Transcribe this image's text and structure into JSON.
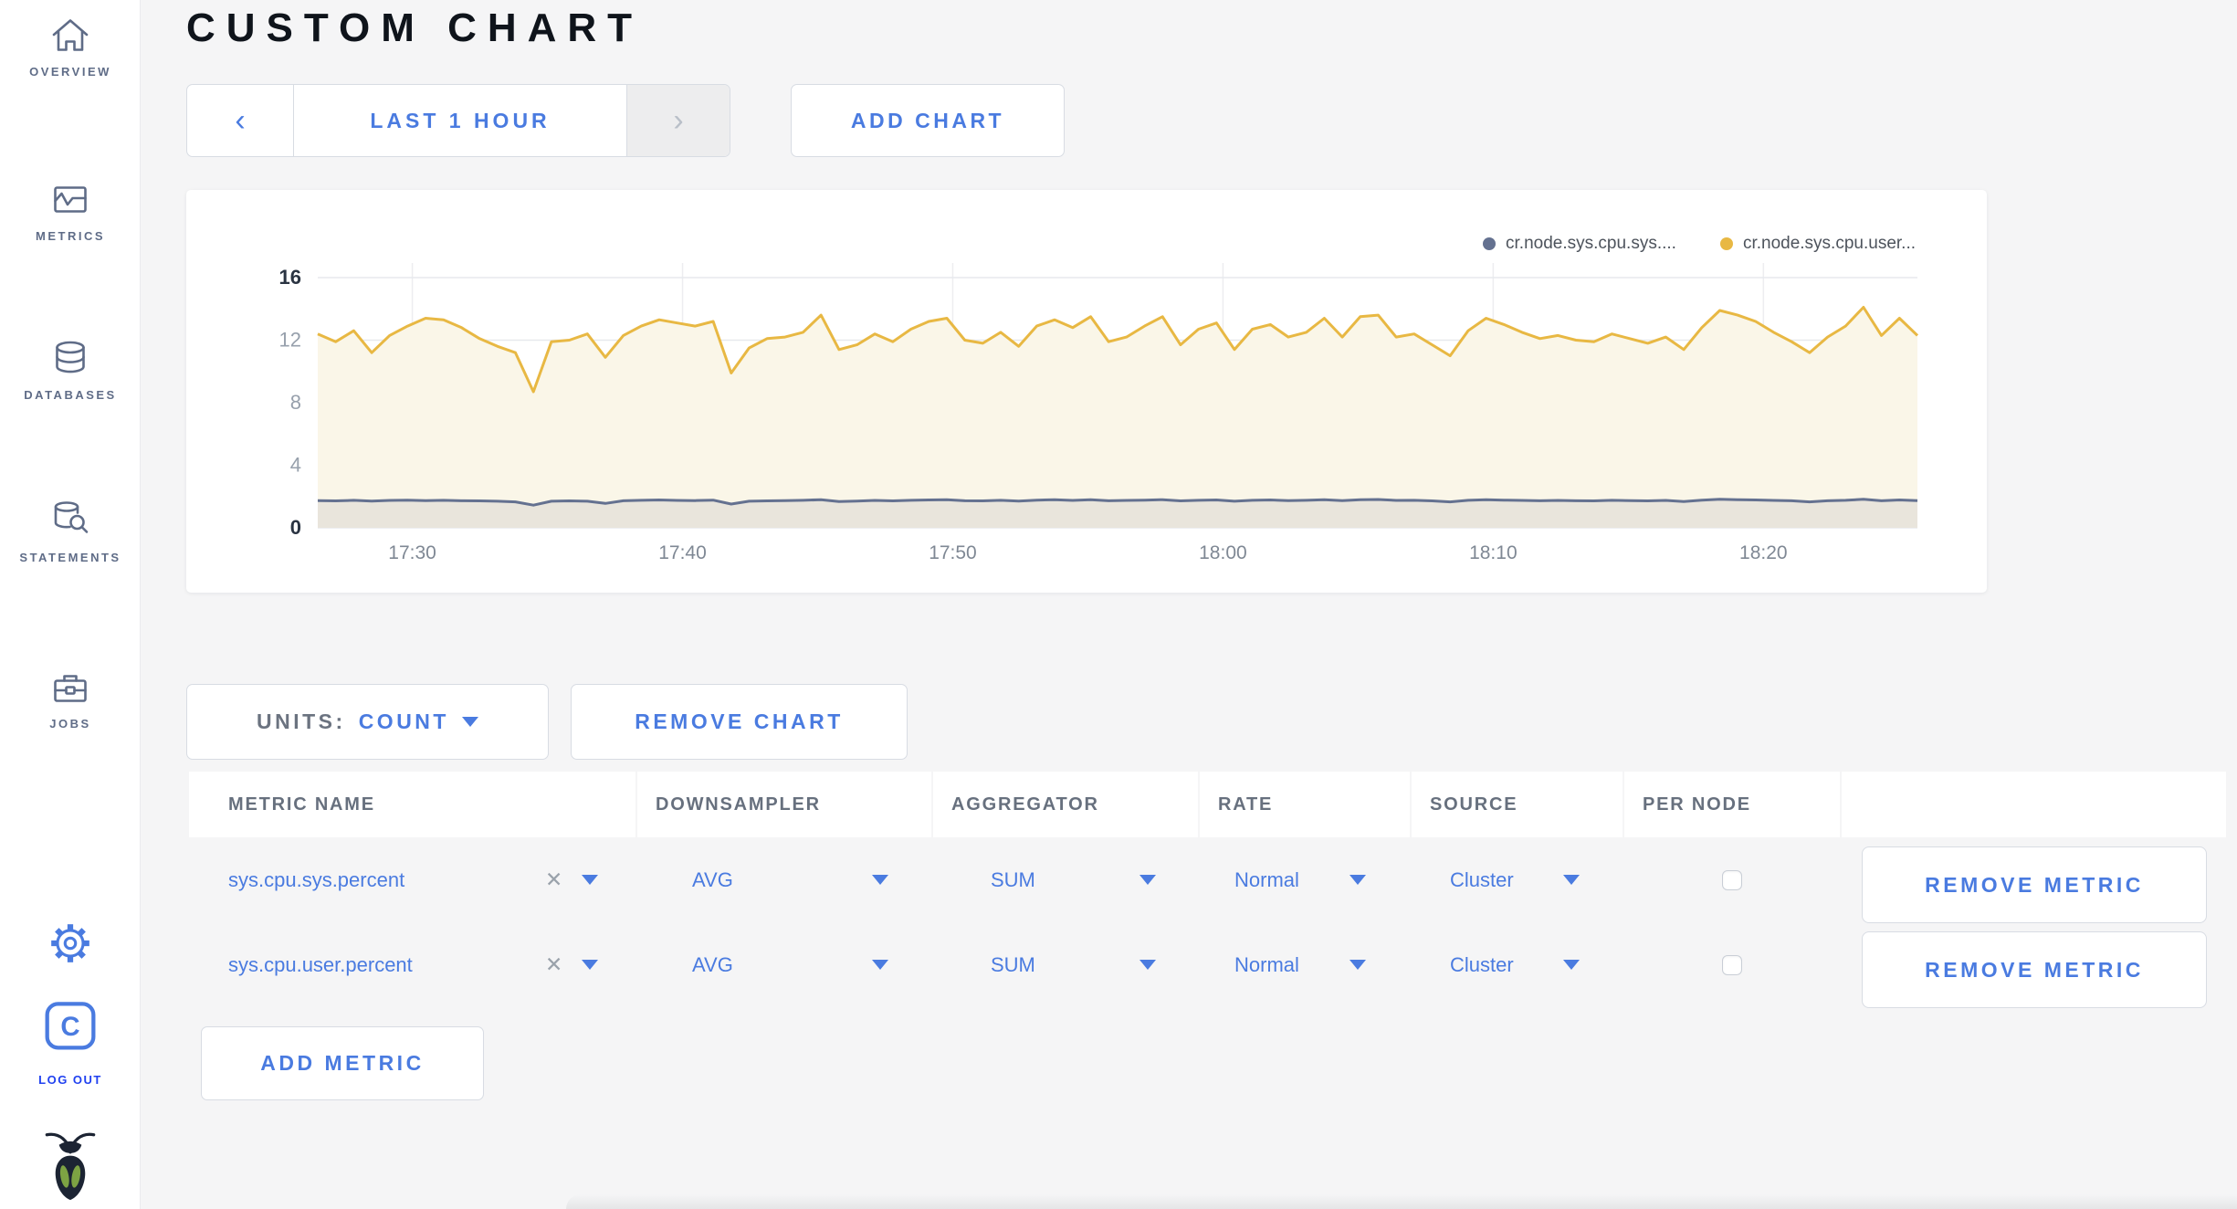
{
  "page": {
    "title": "CUSTOM CHART"
  },
  "sidebar": {
    "items": [
      {
        "label": "OVERVIEW",
        "icon": "home-icon"
      },
      {
        "label": "METRICS",
        "icon": "graph-icon"
      },
      {
        "label": "DATABASES",
        "icon": "database-icon"
      },
      {
        "label": "STATEMENTS",
        "icon": "database-search-icon"
      },
      {
        "label": "JOBS",
        "icon": "briefcase-icon"
      }
    ],
    "gear_icon": "gear-icon",
    "logout_label": "LOG OUT",
    "logo_icon": "cockroach-bug-icon"
  },
  "toolbar": {
    "prev": "‹",
    "time_range": "LAST 1 HOUR",
    "next": "›",
    "add_chart": "ADD CHART"
  },
  "chart_controls": {
    "units_label": "UNITS:",
    "units_value": "COUNT",
    "remove_chart": "REMOVE CHART"
  },
  "metrics_table": {
    "headers": [
      "METRIC NAME",
      "DOWNSAMPLER",
      "AGGREGATOR",
      "RATE",
      "SOURCE",
      "PER NODE"
    ],
    "rows": [
      {
        "name": "sys.cpu.sys.percent",
        "clear": "✕",
        "downsampler": "AVG",
        "aggregator": "SUM",
        "rate": "Normal",
        "source": "Cluster",
        "per_node_checked": false,
        "remove_label": "REMOVE METRIC"
      },
      {
        "name": "sys.cpu.user.percent",
        "clear": "✕",
        "downsampler": "AVG",
        "aggregator": "SUM",
        "rate": "Normal",
        "source": "Cluster",
        "per_node_checked": false,
        "remove_label": "REMOVE METRIC"
      }
    ],
    "add_metric": "ADD METRIC"
  },
  "colors": {
    "accent_blue": "#4a7be0",
    "sidebar_slate": "#5f6c87",
    "title_black": "#0f141b",
    "series_sys": "#647190",
    "series_user": "#e8b843"
  },
  "chart_data": {
    "type": "area",
    "title": "",
    "xlabel": "",
    "ylabel": "",
    "ylim": [
      0,
      16
    ],
    "y_ticks": [
      0,
      4,
      8,
      12,
      16
    ],
    "x_domain_minutes": [
      -3.5,
      55.7
    ],
    "x_ticks": [
      {
        "label": "17:30",
        "minute": 0
      },
      {
        "label": "17:40",
        "minute": 10
      },
      {
        "label": "17:50",
        "minute": 20
      },
      {
        "label": "18:00",
        "minute": 30
      },
      {
        "label": "18:10",
        "minute": 40
      },
      {
        "label": "18:20",
        "minute": 50
      }
    ],
    "grid": true,
    "legend_position": "top-right",
    "series": [
      {
        "name": "cr.node.sys.cpu.sys....",
        "color": "#647190",
        "fill": "#e9e5dc",
        "values": [
          1.74,
          1.72,
          1.76,
          1.71,
          1.75,
          1.77,
          1.74,
          1.76,
          1.73,
          1.72,
          1.7,
          1.66,
          1.45,
          1.7,
          1.72,
          1.7,
          1.56,
          1.73,
          1.76,
          1.78,
          1.75,
          1.74,
          1.77,
          1.52,
          1.7,
          1.72,
          1.74,
          1.76,
          1.8,
          1.68,
          1.71,
          1.75,
          1.72,
          1.76,
          1.78,
          1.79,
          1.73,
          1.72,
          1.76,
          1.71,
          1.77,
          1.79,
          1.75,
          1.8,
          1.73,
          1.75,
          1.77,
          1.8,
          1.72,
          1.76,
          1.78,
          1.7,
          1.76,
          1.78,
          1.74,
          1.76,
          1.79,
          1.74,
          1.8,
          1.81,
          1.75,
          1.76,
          1.72,
          1.66,
          1.76,
          1.79,
          1.77,
          1.75,
          1.73,
          1.75,
          1.73,
          1.72,
          1.76,
          1.74,
          1.72,
          1.75,
          1.68,
          1.77,
          1.82,
          1.8,
          1.78,
          1.75,
          1.73,
          1.66,
          1.73,
          1.76,
          1.82,
          1.73,
          1.78,
          1.74
        ]
      },
      {
        "name": "cr.node.sys.cpu.user...",
        "color": "#e8b843",
        "fill": "#faf6e8",
        "values": [
          12.4,
          11.9,
          12.6,
          11.2,
          12.3,
          12.9,
          13.4,
          13.3,
          12.8,
          12.1,
          11.6,
          11.2,
          8.7,
          11.9,
          12.0,
          12.4,
          10.9,
          12.3,
          12.9,
          13.3,
          13.1,
          12.9,
          13.2,
          9.9,
          11.5,
          12.1,
          12.2,
          12.5,
          13.6,
          11.4,
          11.7,
          12.4,
          11.9,
          12.7,
          13.2,
          13.4,
          12.0,
          11.8,
          12.5,
          11.6,
          12.9,
          13.3,
          12.8,
          13.5,
          11.9,
          12.2,
          12.9,
          13.5,
          11.7,
          12.7,
          13.1,
          11.4,
          12.7,
          13.0,
          12.2,
          12.5,
          13.4,
          12.2,
          13.5,
          13.6,
          12.2,
          12.4,
          11.7,
          11.0,
          12.6,
          13.4,
          13.0,
          12.5,
          12.1,
          12.3,
          12.0,
          11.9,
          12.4,
          12.1,
          11.8,
          12.2,
          11.4,
          12.8,
          13.9,
          13.6,
          13.2,
          12.5,
          11.9,
          11.2,
          12.2,
          12.9,
          14.1,
          12.3,
          13.4,
          12.3
        ]
      }
    ]
  }
}
